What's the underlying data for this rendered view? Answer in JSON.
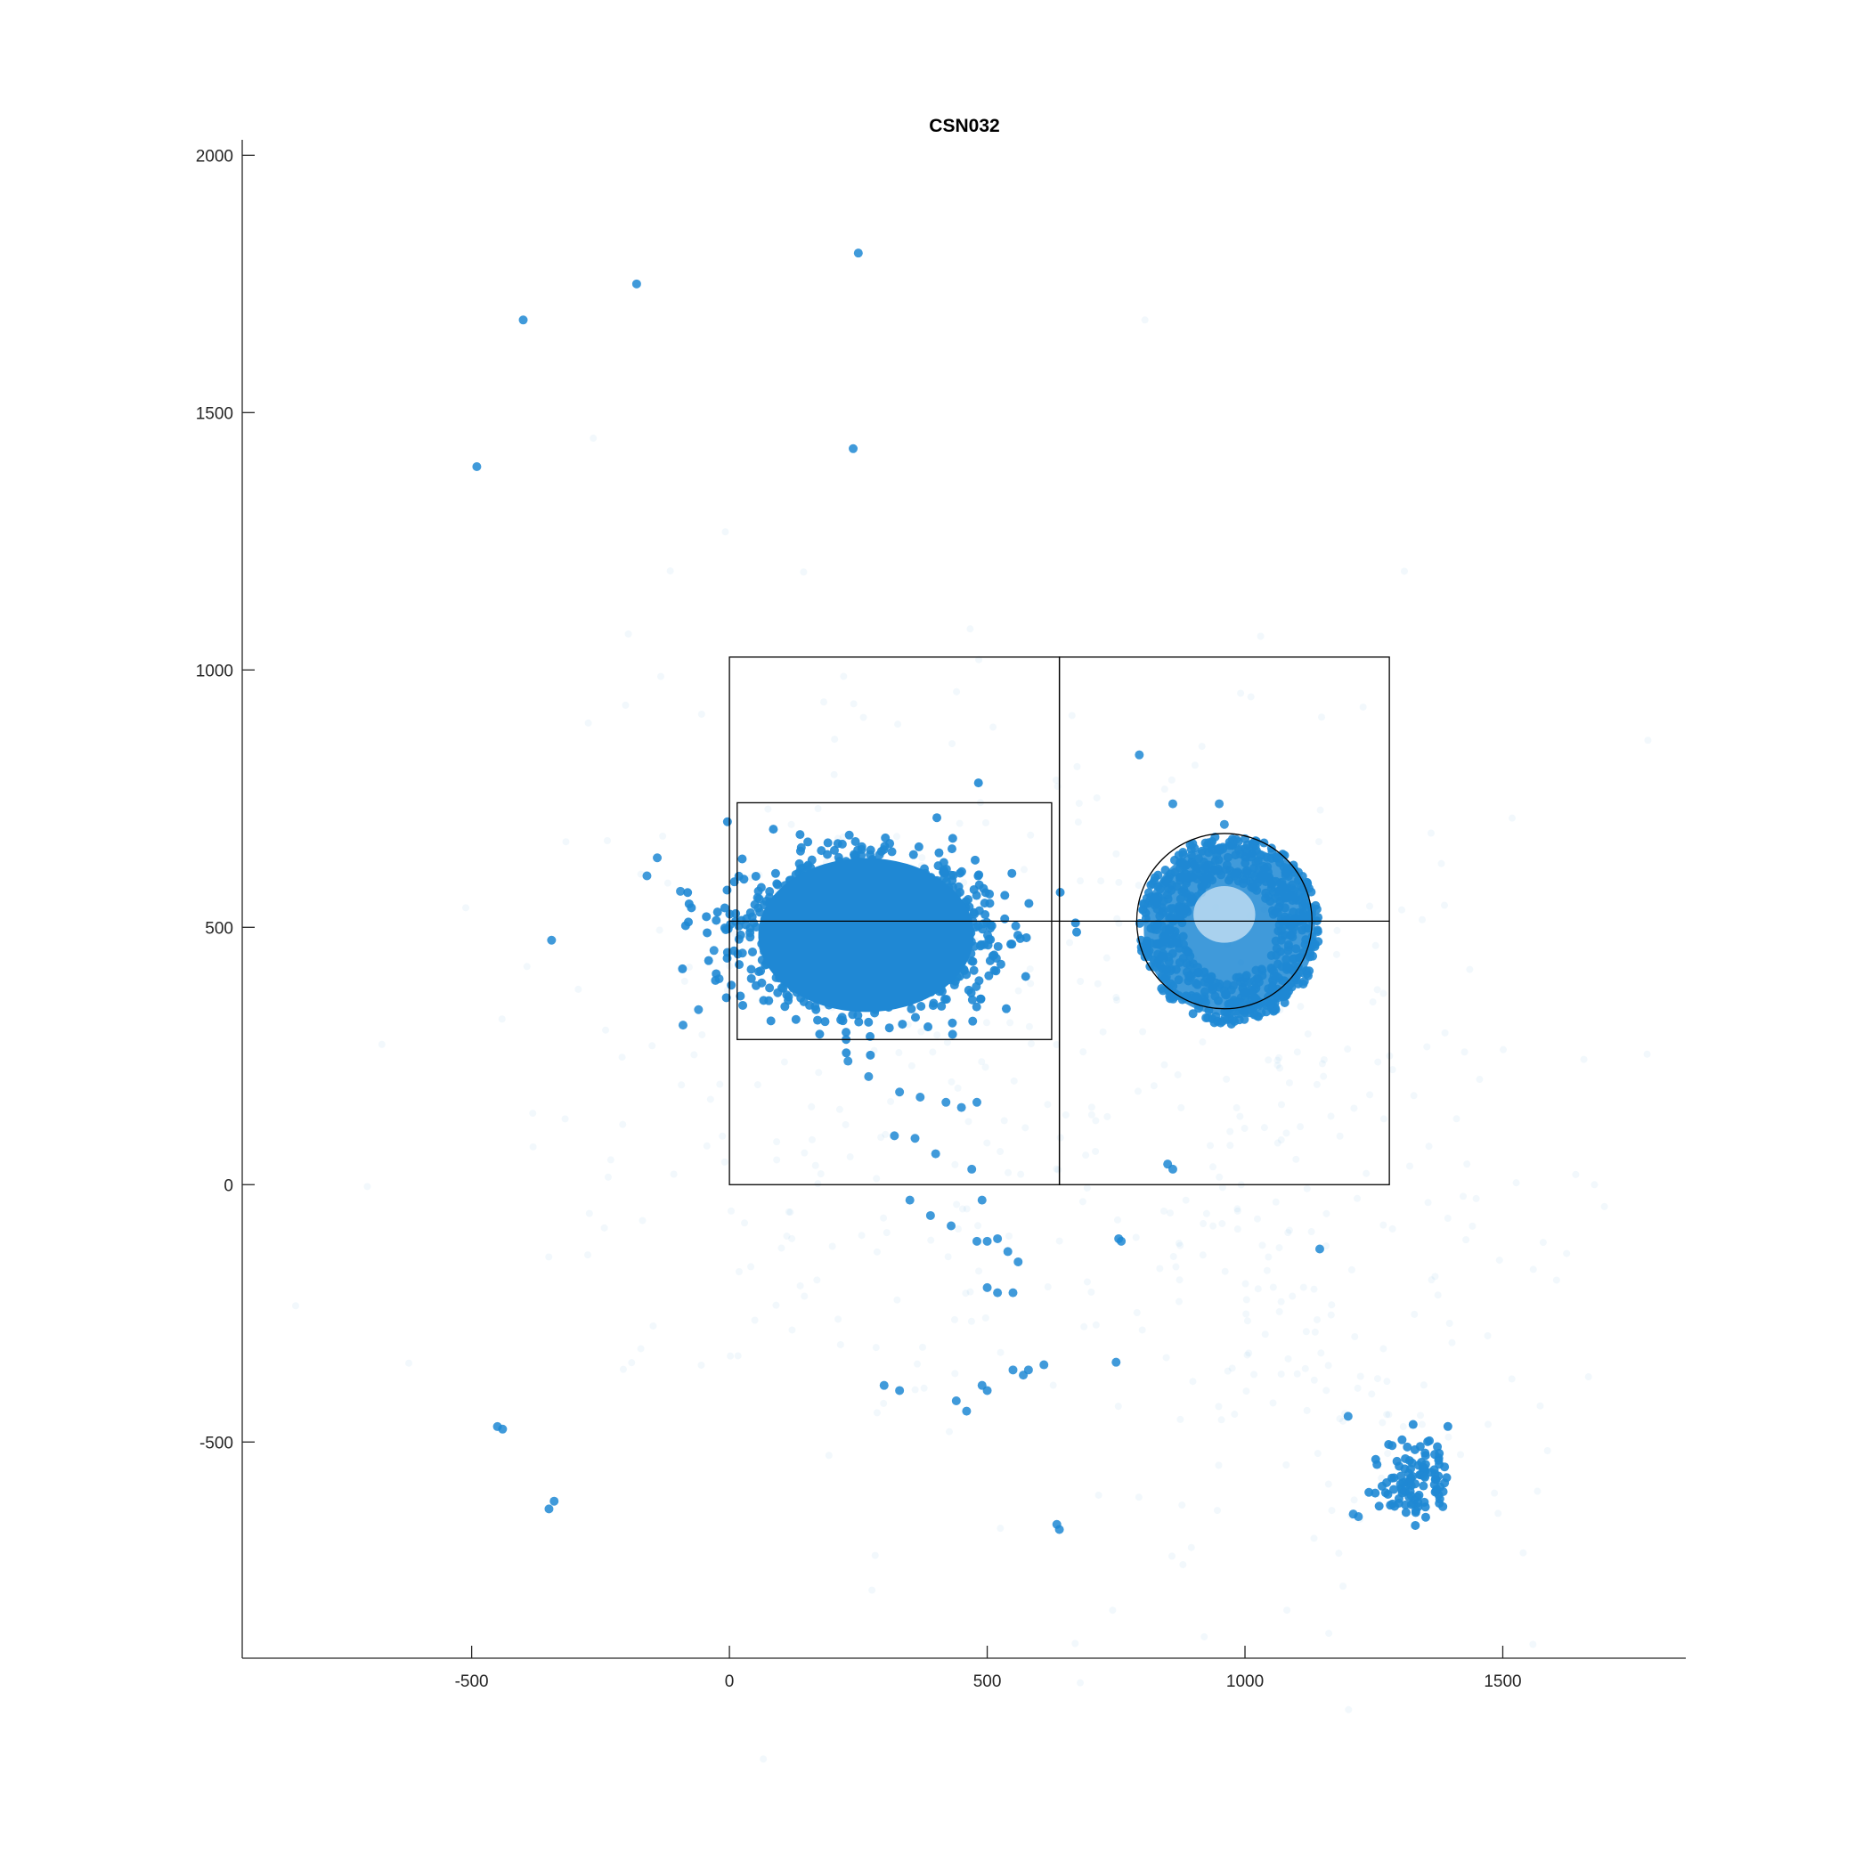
{
  "chart_data": {
    "type": "scatter",
    "title": "CSN032",
    "xlabel": "",
    "ylabel": "",
    "xlim": [
      -945,
      1855
    ],
    "ylim": [
      -920,
      2030
    ],
    "xticks": [
      -500,
      0,
      500,
      1000,
      1500
    ],
    "yticks": [
      -500,
      0,
      500,
      1000,
      1500,
      2000
    ],
    "xtick_labels": [
      "-500",
      "0",
      "500",
      "1000",
      "1500"
    ],
    "ytick_labels": [
      "-500",
      "0",
      "500",
      "1000",
      "1500",
      "2000"
    ],
    "grid": false,
    "legend": "none",
    "marker_color": "#1f88d4",
    "dense_clusters": [
      {
        "name": "left cluster",
        "center": [
          265,
          485
        ],
        "spread": [
          190,
          115
        ],
        "points": 1800
      },
      {
        "name": "right ring cluster",
        "center": [
          970,
          495
        ],
        "radius": 175,
        "points": 700
      },
      {
        "name": "lower-right trails",
        "center": [
          1330,
          -570
        ],
        "spread": [
          55,
          70
        ],
        "points": 110
      }
    ],
    "sparse_points": [
      [
        -140,
        635
      ],
      [
        -160,
        600
      ],
      [
        -95,
        570
      ],
      [
        -30,
        455
      ],
      [
        -20,
        400
      ],
      [
        -60,
        340
      ],
      [
        -90,
        310
      ],
      [
        795,
        835
      ],
      [
        860,
        740
      ],
      [
        950,
        740
      ],
      [
        960,
        700
      ],
      [
        230,
        240
      ],
      [
        270,
        210
      ],
      [
        330,
        180
      ],
      [
        370,
        170
      ],
      [
        420,
        160
      ],
      [
        450,
        150
      ],
      [
        480,
        160
      ],
      [
        320,
        95
      ],
      [
        360,
        90
      ],
      [
        400,
        60
      ],
      [
        470,
        30
      ],
      [
        490,
        -30
      ],
      [
        350,
        -30
      ],
      [
        390,
        -60
      ],
      [
        430,
        -80
      ],
      [
        480,
        -110
      ],
      [
        500,
        -110
      ],
      [
        520,
        -105
      ],
      [
        540,
        -130
      ],
      [
        560,
        -150
      ],
      [
        500,
        -200
      ],
      [
        520,
        -210
      ],
      [
        550,
        -210
      ],
      [
        300,
        -390
      ],
      [
        330,
        -400
      ],
      [
        440,
        -420
      ],
      [
        460,
        -440
      ],
      [
        490,
        -390
      ],
      [
        500,
        -400
      ],
      [
        550,
        -360
      ],
      [
        570,
        -370
      ],
      [
        580,
        -360
      ],
      [
        610,
        -350
      ],
      [
        850,
        40
      ],
      [
        860,
        30
      ],
      [
        755,
        -105
      ],
      [
        760,
        -110
      ],
      [
        750,
        -345
      ],
      [
        1145,
        -125
      ],
      [
        635,
        -660
      ],
      [
        640,
        -670
      ],
      [
        1210,
        -640
      ],
      [
        1220,
        -645
      ],
      [
        1200,
        -450
      ],
      [
        -450,
        -470
      ],
      [
        -440,
        -475
      ],
      [
        -340,
        -615
      ],
      [
        -350,
        -630
      ],
      [
        -490,
        1395
      ],
      [
        -345,
        475
      ],
      [
        250,
        1810
      ],
      [
        -180,
        1750
      ],
      [
        -400,
        1680
      ],
      [
        240,
        1430
      ]
    ],
    "overlays": {
      "rectangles": [
        {
          "x": [
            0,
            640
          ],
          "y": [
            0,
            1025
          ]
        },
        {
          "x": [
            640,
            1280
          ],
          "y": [
            0,
            1025
          ]
        },
        {
          "x": [
            15,
            625
          ],
          "y": [
            282,
            742
          ]
        }
      ],
      "horizontal_line": {
        "y": 512,
        "x": [
          0,
          1280
        ]
      },
      "circle": {
        "center": [
          960,
          512
        ],
        "radius": 170
      }
    }
  }
}
